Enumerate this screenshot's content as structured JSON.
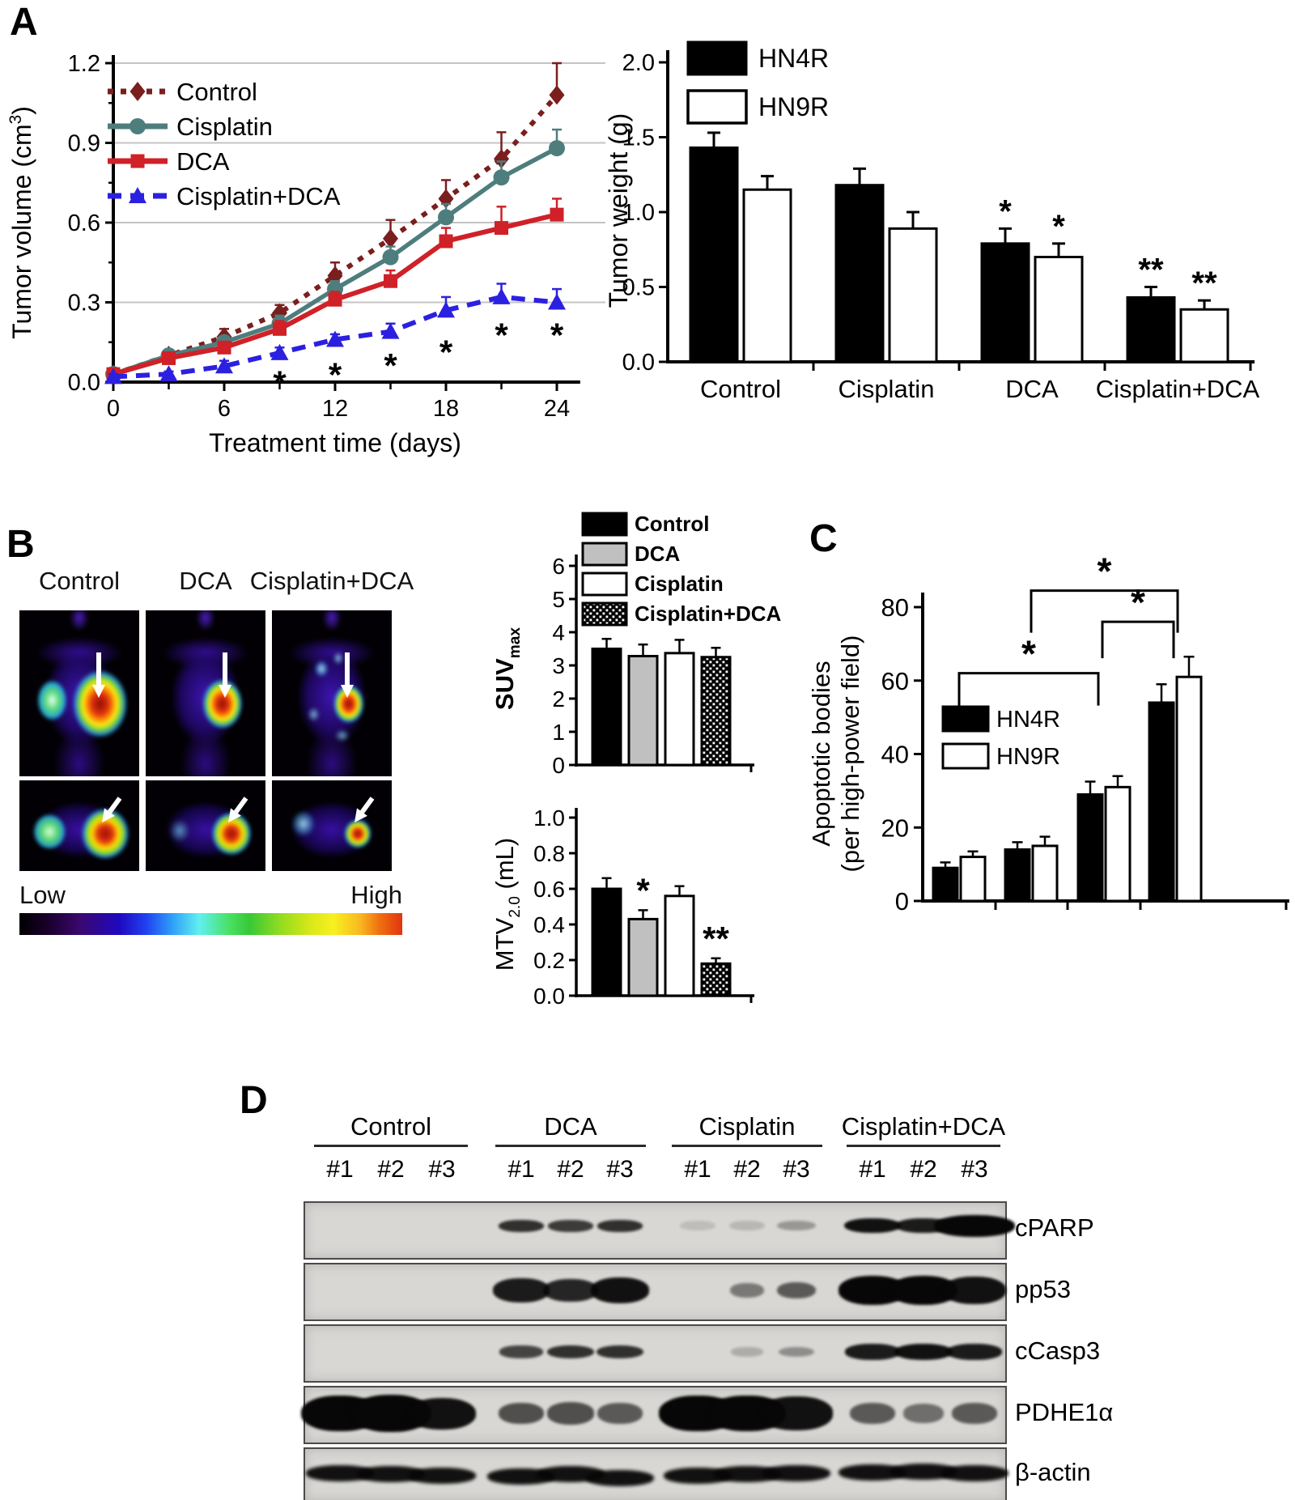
{
  "panels": {
    "A": "A",
    "B": "B",
    "C": "C",
    "D": "D"
  },
  "colors": {
    "control_line": "#7a1e1e",
    "cisplatin_line": "#4e7d7d",
    "dca_line": "#cf2127",
    "cisplatin_dca_line": "#2b20e0",
    "grid": "#c4c4c4",
    "bar_black": "#000000",
    "bar_gray": "#c0c0c0",
    "bar_white": "#ffffff"
  },
  "chart_data": [
    {
      "id": "tumor_volume",
      "type": "line",
      "panel": "A",
      "ylabel": {
        "pre": "Tumor volume (cm",
        "sup": "3",
        "post": ")"
      },
      "xlabel": "Treatment time (days)",
      "xlim": [
        0,
        25
      ],
      "ylim": [
        0,
        1.2
      ],
      "xticks": [
        0,
        6,
        12,
        18,
        24
      ],
      "xminor": [
        3,
        9,
        15,
        21
      ],
      "yticks": [
        "0.0",
        "0.3",
        "0.6",
        "0.9",
        "1.2"
      ],
      "ytick_values": [
        0,
        0.3,
        0.6,
        0.9,
        1.2
      ],
      "yminor_values": [
        0.15,
        0.45,
        0.75,
        1.05
      ],
      "grid_values": [
        0.3,
        0.6,
        0.9,
        1.2
      ],
      "grid": true,
      "legend_position": "top-left",
      "x": [
        0,
        3,
        6,
        9,
        12,
        15,
        18,
        21,
        24
      ],
      "series": [
        {
          "name": "Control",
          "color": "#7a1e1e",
          "marker": "diamond",
          "line": "dotted",
          "values": [
            0.03,
            0.1,
            0.17,
            0.26,
            0.4,
            0.54,
            0.69,
            0.84,
            1.08
          ],
          "errors": [
            0.01,
            0.02,
            0.03,
            0.03,
            0.05,
            0.07,
            0.07,
            0.1,
            0.12
          ]
        },
        {
          "name": "Cisplatin",
          "color": "#4e7d7d",
          "marker": "circle",
          "line": "solid",
          "values": [
            0.03,
            0.1,
            0.15,
            0.22,
            0.35,
            0.47,
            0.62,
            0.77,
            0.88
          ],
          "errors": [
            0.01,
            0.02,
            0.02,
            0.03,
            0.03,
            0.04,
            0.05,
            0.06,
            0.07
          ]
        },
        {
          "name": "DCA",
          "color": "#cf2127",
          "marker": "square",
          "line": "solid",
          "values": [
            0.03,
            0.09,
            0.13,
            0.2,
            0.31,
            0.38,
            0.53,
            0.58,
            0.63
          ],
          "errors": [
            0.01,
            0.01,
            0.02,
            0.03,
            0.03,
            0.04,
            0.05,
            0.08,
            0.06
          ]
        },
        {
          "name": "Cisplatin+DCA",
          "color": "#2b20e0",
          "marker": "triangle",
          "line": "dashed",
          "values": [
            0.02,
            0.03,
            0.06,
            0.11,
            0.16,
            0.19,
            0.27,
            0.32,
            0.3
          ],
          "errors": [
            0.01,
            0.01,
            0.02,
            0.02,
            0.02,
            0.03,
            0.05,
            0.05,
            0.05
          ]
        }
      ],
      "significance": {
        "symbol": "*",
        "points": [
          {
            "x": 9,
            "y": 0.02
          },
          {
            "x": 12,
            "y": 0.05
          },
          {
            "x": 15,
            "y": 0.085
          },
          {
            "x": 18,
            "y": 0.135
          },
          {
            "x": 21,
            "y": 0.2
          },
          {
            "x": 24,
            "y": 0.2
          }
        ]
      }
    },
    {
      "id": "tumor_weight",
      "type": "bar",
      "panel": "A",
      "ylabel": "Tumor weight (g)",
      "ylim": [
        0,
        2
      ],
      "yticks": [
        "0.0",
        "0.5",
        "1.0",
        "1.5",
        "2.0"
      ],
      "ytick_values": [
        0,
        0.5,
        1,
        1.5,
        2
      ],
      "categories": [
        "Control",
        "Cisplatin",
        "DCA",
        "Cisplatin+DCA"
      ],
      "legend": [
        {
          "label": "HN4R",
          "fill": "black"
        },
        {
          "label": "HN9R",
          "fill": "white"
        }
      ],
      "series": [
        {
          "name": "HN4R",
          "fill": "black",
          "values": [
            1.43,
            1.18,
            0.79,
            0.43
          ],
          "errors": [
            0.1,
            0.11,
            0.1,
            0.07
          ],
          "sig": [
            "",
            "",
            "*",
            "**"
          ]
        },
        {
          "name": "HN9R",
          "fill": "white",
          "values": [
            1.15,
            0.89,
            0.7,
            0.35
          ],
          "errors": [
            0.09,
            0.11,
            0.09,
            0.06
          ],
          "sig": [
            "",
            "",
            "*",
            "**"
          ]
        }
      ]
    },
    {
      "id": "suv_max",
      "type": "bar",
      "panel": "B",
      "ylabel": {
        "pre": "SUV",
        "sub": "max"
      },
      "ylim": [
        0,
        6
      ],
      "yticks": [
        "0",
        "1",
        "2",
        "3",
        "4",
        "5",
        "6"
      ],
      "ytick_values": [
        0,
        1,
        2,
        3,
        4,
        5,
        6
      ],
      "categories": [
        "Control",
        "DCA",
        "Cisplatin",
        "Cisplatin+DCA"
      ],
      "legend": [
        {
          "label": "Control",
          "fill": "black"
        },
        {
          "label": "DCA",
          "fill": "gray"
        },
        {
          "label": "Cisplatin",
          "fill": "white"
        },
        {
          "label": "Cisplatin+DCA",
          "fill": "checker"
        }
      ],
      "series": [
        {
          "name": "SUVmax",
          "fills": [
            "black",
            "gray",
            "white",
            "checker"
          ],
          "values": [
            3.5,
            3.28,
            3.37,
            3.25
          ],
          "errors": [
            0.3,
            0.35,
            0.4,
            0.28
          ],
          "sig": [
            "",
            "",
            "",
            ""
          ]
        }
      ]
    },
    {
      "id": "mtv",
      "type": "bar",
      "panel": "B",
      "ylabel": {
        "pre": "MTV",
        "sub": "2.0",
        "post": " (mL)"
      },
      "ylim": [
        0,
        1
      ],
      "yticks": [
        "0.0",
        "0.2",
        "0.4",
        "0.6",
        "0.8",
        "1.0"
      ],
      "ytick_values": [
        0,
        0.2,
        0.4,
        0.6,
        0.8,
        1
      ],
      "categories": [
        "Control",
        "DCA",
        "Cisplatin",
        "Cisplatin+DCA"
      ],
      "series": [
        {
          "name": "MTV2.0",
          "fills": [
            "black",
            "gray",
            "white",
            "checker"
          ],
          "values": [
            0.6,
            0.43,
            0.56,
            0.18
          ],
          "errors": [
            0.06,
            0.05,
            0.055,
            0.03
          ],
          "sig": [
            "",
            "*",
            "",
            "**"
          ]
        }
      ]
    },
    {
      "id": "apoptotic_bodies",
      "type": "bar",
      "panel": "C",
      "ylabel_lines": [
        "Apoptotic bodies",
        "(per high-power field)"
      ],
      "ylim": [
        0,
        80
      ],
      "yticks": [
        "0",
        "20",
        "40",
        "60",
        "80"
      ],
      "ytick_values": [
        0,
        20,
        40,
        60,
        80
      ],
      "categories": [
        "",
        "",
        "",
        ""
      ],
      "legend": [
        {
          "label": "HN4R",
          "fill": "black"
        },
        {
          "label": "HN9R",
          "fill": "white"
        }
      ],
      "series": [
        {
          "name": "HN4R",
          "fill": "black",
          "values": [
            9,
            14,
            29,
            54
          ],
          "errors": [
            1.5,
            2,
            3.5,
            5
          ]
        },
        {
          "name": "HN9R",
          "fill": "white",
          "values": [
            12,
            15,
            31,
            61
          ],
          "errors": [
            1.5,
            2.5,
            3,
            5.5
          ]
        }
      ],
      "brackets": [
        {
          "from": 0,
          "to": 2,
          "level": 62,
          "label": "*"
        },
        {
          "from": 2,
          "to": 3,
          "level": 76,
          "label": "*"
        },
        {
          "from": 1,
          "to": 3,
          "level": 84.5,
          "label": "*"
        }
      ]
    }
  ],
  "panelB_images": {
    "columns": [
      {
        "label": "Control",
        "tumor": "large"
      },
      {
        "label": "DCA",
        "tumor": "medium"
      },
      {
        "label": "Cisplatin+DCA",
        "tumor": "small"
      }
    ],
    "colorbar": {
      "low": "Low",
      "high": "High"
    }
  },
  "western_blot": {
    "groups": [
      "Control",
      "DCA",
      "Cisplatin",
      "Cisplatin+DCA"
    ],
    "replicates": [
      "#1",
      "#2",
      "#3"
    ],
    "rows": [
      {
        "label": "cPARP",
        "intensities": [
          0,
          0,
          0,
          0.8,
          0.75,
          0.8,
          0.12,
          0.15,
          0.3,
          0.95,
          0.9,
          1
        ],
        "sizes": [
          0,
          0,
          0,
          1,
          1,
          1,
          0.8,
          0.8,
          0.85,
          1.25,
          1.2,
          1.8
        ]
      },
      {
        "label": "pp53",
        "intensities": [
          0,
          0,
          0,
          0.9,
          0.85,
          0.95,
          0,
          0.45,
          0.6,
          1,
          1,
          0.95
        ],
        "sizes": [
          0,
          0,
          0,
          1.25,
          1.2,
          1.3,
          0,
          0.75,
          0.85,
          1.5,
          1.5,
          1.4
        ]
      },
      {
        "label": "cCasp3",
        "intensities": [
          0,
          0,
          0,
          0.7,
          0.8,
          0.8,
          0,
          0.2,
          0.35,
          0.9,
          0.95,
          0.9
        ],
        "sizes": [
          0,
          0,
          0,
          0.95,
          1.05,
          1.05,
          0,
          0.7,
          0.8,
          1.2,
          1.3,
          1.2
        ]
      },
      {
        "label": "PDHE1α",
        "intensities": [
          1,
          1,
          0.95,
          0.65,
          0.65,
          0.6,
          1,
          1,
          0.95,
          0.6,
          0.5,
          0.6
        ],
        "sizes": [
          1.7,
          1.8,
          1.5,
          1,
          1.05,
          1,
          1.7,
          1.7,
          1.6,
          1,
          0.9,
          1
        ]
      },
      {
        "label": "β-actin",
        "continuous": true,
        "intensities": [
          0.95,
          0.95,
          0.95,
          0.95,
          0.95,
          0.95,
          0.95,
          0.95,
          0.95,
          0.95,
          0.95,
          0.95
        ],
        "sizes": [
          1,
          1,
          1,
          1,
          1,
          1,
          1,
          1,
          1,
          1,
          1,
          1
        ]
      }
    ]
  }
}
